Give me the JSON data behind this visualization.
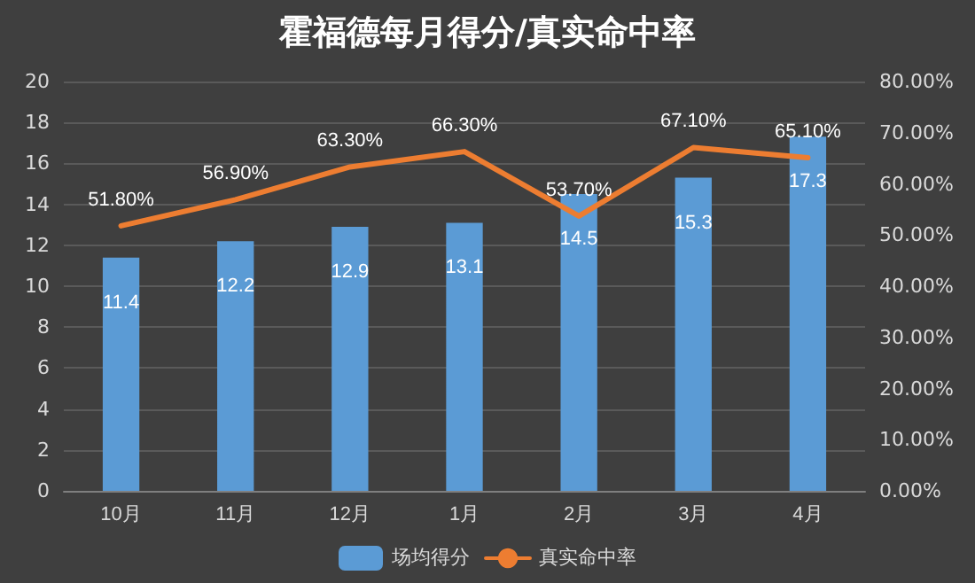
{
  "chart_data": {
    "type": "bar",
    "title": "霍福德每月得分/真实命中率",
    "categories": [
      "10月",
      "11月",
      "12月",
      "1月",
      "2月",
      "3月",
      "4月"
    ],
    "series": [
      {
        "name": "场均得分",
        "color": "#5b9bd5",
        "values": [
          11.4,
          12.2,
          12.9,
          13.1,
          14.5,
          15.3,
          17.3
        ],
        "value_labels": [
          "11.4",
          "12.2",
          "12.9",
          "13.1",
          "14.5",
          "15.3",
          "17.3"
        ]
      },
      {
        "name": "真实命中率",
        "type": "line",
        "axis": "y2",
        "color": "#ed7d31",
        "values": [
          51.8,
          56.9,
          63.3,
          66.3,
          53.7,
          67.1,
          65.1
        ],
        "value_labels": [
          "51.80%",
          "56.90%",
          "63.30%",
          "66.30%",
          "53.70%",
          "67.10%",
          "65.10%"
        ]
      }
    ],
    "ylim": [
      0,
      20
    ],
    "yticks": [
      0,
      2,
      4,
      6,
      8,
      10,
      12,
      14,
      16,
      18,
      20
    ],
    "y2lim": [
      0,
      80
    ],
    "y2ticks": [
      {
        "value": 0,
        "label": "0.00%"
      },
      {
        "value": 10,
        "label": "10.00%"
      },
      {
        "value": 20,
        "label": "20.00%"
      },
      {
        "value": 30,
        "label": "30.00%"
      },
      {
        "value": 40,
        "label": "40.00%"
      },
      {
        "value": 50,
        "label": "50.00%"
      },
      {
        "value": 60,
        "label": "60.00%"
      },
      {
        "value": 70,
        "label": "70.00%"
      },
      {
        "value": 80,
        "label": "80.00%"
      }
    ],
    "grid": "y",
    "legend": "bottom",
    "marker": "none",
    "line_style": "solid"
  }
}
